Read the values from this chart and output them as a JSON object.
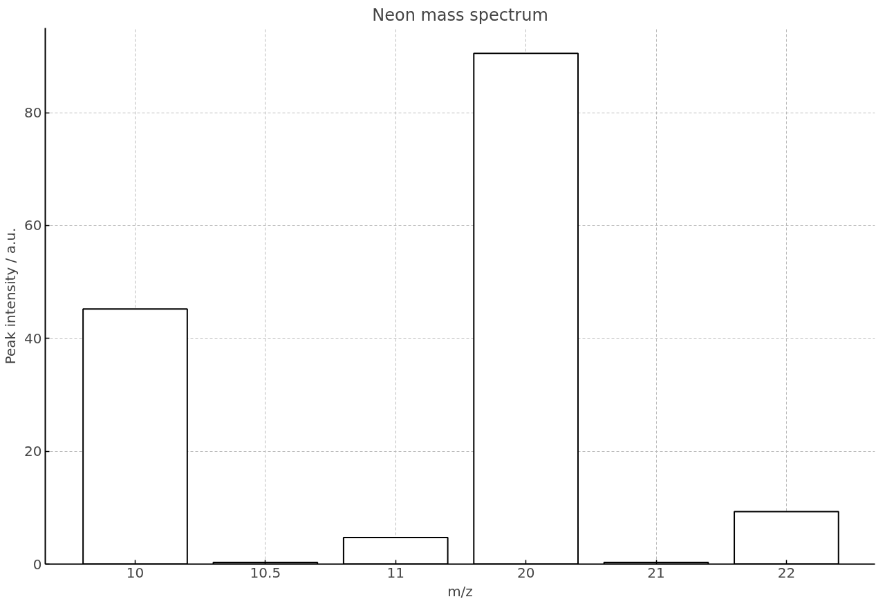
{
  "chart_data": {
    "type": "bar",
    "title": "Neon mass spectrum",
    "xlabel": "m/z",
    "ylabel": "Peak intensity / a.u.",
    "categories": [
      "10",
      "10.5",
      "11",
      "20",
      "21",
      "22"
    ],
    "series": [
      {
        "color": "#ffffff",
        "values": [
          45.2,
          0.3,
          4.7,
          90.5,
          0.3,
          9.3
        ]
      }
    ],
    "ylim": [
      0,
      95
    ],
    "yticks": [
      0,
      20,
      40,
      60,
      80
    ],
    "grid": true
  }
}
